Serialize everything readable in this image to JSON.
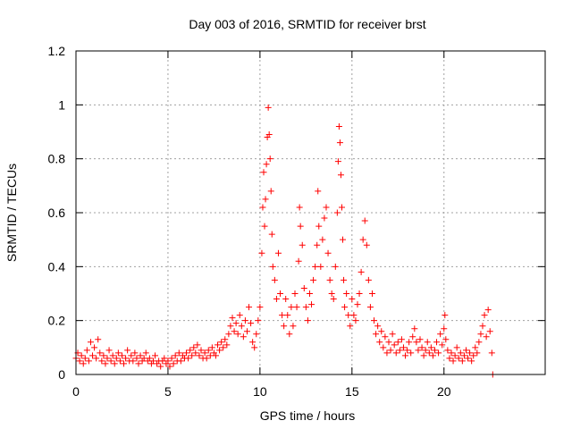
{
  "chart_data": {
    "type": "scatter",
    "title": "Day 003 of 2016, SRMTID for receiver brst",
    "xlabel": "GPS time / hours",
    "ylabel": "SRMTID / TECUs",
    "xlim": [
      0,
      25.5
    ],
    "ylim": [
      0,
      1.2
    ],
    "xticks": [
      0,
      5,
      10,
      15,
      20
    ],
    "xtick_labels": [
      "0",
      "5",
      "10",
      "15",
      "20"
    ],
    "yticks": [
      0,
      0.2,
      0.4,
      0.6,
      0.8,
      1.0,
      1.2
    ],
    "ytick_labels": [
      "0",
      "0.2",
      "0.4",
      "0.6",
      "0.8",
      "1",
      "1.2"
    ],
    "grid": true,
    "marker": "+",
    "color": "#ff0000",
    "series": [
      {
        "name": "SRMTID",
        "points": [
          [
            0.0,
            0.06
          ],
          [
            0.1,
            0.08
          ],
          [
            0.2,
            0.05
          ],
          [
            0.3,
            0.07
          ],
          [
            0.4,
            0.04
          ],
          [
            0.5,
            0.06
          ],
          [
            0.6,
            0.09
          ],
          [
            0.7,
            0.05
          ],
          [
            0.8,
            0.12
          ],
          [
            0.9,
            0.07
          ],
          [
            1.0,
            0.1
          ],
          [
            1.1,
            0.06
          ],
          [
            1.2,
            0.13
          ],
          [
            1.3,
            0.08
          ],
          [
            1.4,
            0.05
          ],
          [
            1.5,
            0.07
          ],
          [
            1.6,
            0.04
          ],
          [
            1.7,
            0.06
          ],
          [
            1.8,
            0.09
          ],
          [
            1.9,
            0.05
          ],
          [
            2.0,
            0.07
          ],
          [
            2.1,
            0.04
          ],
          [
            2.2,
            0.06
          ],
          [
            2.3,
            0.08
          ],
          [
            2.4,
            0.05
          ],
          [
            2.5,
            0.07
          ],
          [
            2.6,
            0.04
          ],
          [
            2.7,
            0.06
          ],
          [
            2.8,
            0.09
          ],
          [
            2.9,
            0.05
          ],
          [
            3.0,
            0.07
          ],
          [
            3.1,
            0.05
          ],
          [
            3.2,
            0.08
          ],
          [
            3.3,
            0.06
          ],
          [
            3.4,
            0.04
          ],
          [
            3.5,
            0.07
          ],
          [
            3.6,
            0.05
          ],
          [
            3.7,
            0.06
          ],
          [
            3.8,
            0.08
          ],
          [
            3.9,
            0.05
          ],
          [
            4.0,
            0.06
          ],
          [
            4.1,
            0.04
          ],
          [
            4.2,
            0.05
          ],
          [
            4.3,
            0.07
          ],
          [
            4.4,
            0.04
          ],
          [
            4.5,
            0.05
          ],
          [
            4.6,
            0.03
          ],
          [
            4.7,
            0.05
          ],
          [
            4.8,
            0.06
          ],
          [
            4.9,
            0.04
          ],
          [
            5.0,
            0.05
          ],
          [
            5.1,
            0.03
          ],
          [
            5.2,
            0.06
          ],
          [
            5.3,
            0.04
          ],
          [
            5.4,
            0.07
          ],
          [
            5.5,
            0.05
          ],
          [
            5.6,
            0.08
          ],
          [
            5.7,
            0.05
          ],
          [
            5.8,
            0.07
          ],
          [
            5.9,
            0.06
          ],
          [
            6.0,
            0.08
          ],
          [
            6.1,
            0.06
          ],
          [
            6.2,
            0.09
          ],
          [
            6.3,
            0.07
          ],
          [
            6.4,
            0.1
          ],
          [
            6.5,
            0.08
          ],
          [
            6.6,
            0.11
          ],
          [
            6.7,
            0.07
          ],
          [
            6.8,
            0.09
          ],
          [
            6.9,
            0.06
          ],
          [
            7.0,
            0.08
          ],
          [
            7.1,
            0.06
          ],
          [
            7.2,
            0.09
          ],
          [
            7.3,
            0.07
          ],
          [
            7.4,
            0.1
          ],
          [
            7.5,
            0.08
          ],
          [
            7.6,
            0.07
          ],
          [
            7.7,
            0.11
          ],
          [
            7.8,
            0.09
          ],
          [
            7.9,
            0.12
          ],
          [
            8.0,
            0.1
          ],
          [
            8.1,
            0.13
          ],
          [
            8.2,
            0.11
          ],
          [
            8.3,
            0.15
          ],
          [
            8.4,
            0.18
          ],
          [
            8.5,
            0.21
          ],
          [
            8.6,
            0.16
          ],
          [
            8.7,
            0.19
          ],
          [
            8.8,
            0.15
          ],
          [
            8.9,
            0.22
          ],
          [
            9.0,
            0.18
          ],
          [
            9.1,
            0.14
          ],
          [
            9.2,
            0.2
          ],
          [
            9.3,
            0.16
          ],
          [
            9.4,
            0.25
          ],
          [
            9.5,
            0.19
          ],
          [
            9.6,
            0.12
          ],
          [
            9.7,
            0.1
          ],
          [
            9.8,
            0.15
          ],
          [
            9.9,
            0.2
          ],
          [
            10.0,
            0.25
          ],
          [
            10.1,
            0.45
          ],
          [
            10.15,
            0.62
          ],
          [
            10.2,
            0.75
          ],
          [
            10.25,
            0.55
          ],
          [
            10.3,
            0.65
          ],
          [
            10.35,
            0.78
          ],
          [
            10.4,
            0.88
          ],
          [
            10.45,
            0.99
          ],
          [
            10.5,
            0.89
          ],
          [
            10.55,
            0.8
          ],
          [
            10.6,
            0.68
          ],
          [
            10.65,
            0.52
          ],
          [
            10.7,
            0.4
          ],
          [
            10.8,
            0.35
          ],
          [
            10.9,
            0.28
          ],
          [
            11.0,
            0.45
          ],
          [
            11.1,
            0.3
          ],
          [
            11.2,
            0.22
          ],
          [
            11.3,
            0.18
          ],
          [
            11.4,
            0.28
          ],
          [
            11.5,
            0.22
          ],
          [
            11.6,
            0.15
          ],
          [
            11.7,
            0.25
          ],
          [
            11.8,
            0.18
          ],
          [
            11.9,
            0.3
          ],
          [
            12.0,
            0.25
          ],
          [
            12.1,
            0.42
          ],
          [
            12.15,
            0.62
          ],
          [
            12.2,
            0.55
          ],
          [
            12.3,
            0.48
          ],
          [
            12.4,
            0.32
          ],
          [
            12.5,
            0.25
          ],
          [
            12.6,
            0.2
          ],
          [
            12.7,
            0.3
          ],
          [
            12.8,
            0.26
          ],
          [
            12.9,
            0.35
          ],
          [
            13.0,
            0.4
          ],
          [
            13.1,
            0.48
          ],
          [
            13.15,
            0.68
          ],
          [
            13.2,
            0.55
          ],
          [
            13.3,
            0.4
          ],
          [
            13.4,
            0.5
          ],
          [
            13.5,
            0.58
          ],
          [
            13.6,
            0.62
          ],
          [
            13.7,
            0.45
          ],
          [
            13.8,
            0.35
          ],
          [
            13.9,
            0.3
          ],
          [
            14.0,
            0.28
          ],
          [
            14.1,
            0.4
          ],
          [
            14.2,
            0.6
          ],
          [
            14.25,
            0.79
          ],
          [
            14.3,
            0.92
          ],
          [
            14.35,
            0.86
          ],
          [
            14.4,
            0.74
          ],
          [
            14.45,
            0.62
          ],
          [
            14.5,
            0.5
          ],
          [
            14.55,
            0.35
          ],
          [
            14.6,
            0.25
          ],
          [
            14.7,
            0.3
          ],
          [
            14.8,
            0.22
          ],
          [
            14.9,
            0.18
          ],
          [
            15.0,
            0.28
          ],
          [
            15.1,
            0.22
          ],
          [
            15.2,
            0.2
          ],
          [
            15.3,
            0.26
          ],
          [
            15.4,
            0.3
          ],
          [
            15.5,
            0.38
          ],
          [
            15.6,
            0.5
          ],
          [
            15.7,
            0.57
          ],
          [
            15.8,
            0.48
          ],
          [
            15.9,
            0.35
          ],
          [
            16.0,
            0.25
          ],
          [
            16.1,
            0.3
          ],
          [
            16.2,
            0.2
          ],
          [
            16.3,
            0.15
          ],
          [
            16.4,
            0.18
          ],
          [
            16.5,
            0.12
          ],
          [
            16.6,
            0.16
          ],
          [
            16.7,
            0.1
          ],
          [
            16.8,
            0.14
          ],
          [
            16.9,
            0.08
          ],
          [
            17.0,
            0.12
          ],
          [
            17.1,
            0.09
          ],
          [
            17.2,
            0.15
          ],
          [
            17.3,
            0.11
          ],
          [
            17.4,
            0.08
          ],
          [
            17.5,
            0.12
          ],
          [
            17.6,
            0.09
          ],
          [
            17.7,
            0.13
          ],
          [
            17.8,
            0.1
          ],
          [
            17.9,
            0.07
          ],
          [
            18.0,
            0.09
          ],
          [
            18.1,
            0.12
          ],
          [
            18.2,
            0.08
          ],
          [
            18.3,
            0.14
          ],
          [
            18.4,
            0.17
          ],
          [
            18.5,
            0.12
          ],
          [
            18.6,
            0.09
          ],
          [
            18.7,
            0.13
          ],
          [
            18.8,
            0.1
          ],
          [
            18.9,
            0.07
          ],
          [
            19.0,
            0.09
          ],
          [
            19.1,
            0.12
          ],
          [
            19.2,
            0.08
          ],
          [
            19.3,
            0.1
          ],
          [
            19.4,
            0.07
          ],
          [
            19.5,
            0.09
          ],
          [
            19.6,
            0.12
          ],
          [
            19.7,
            0.08
          ],
          [
            19.8,
            0.15
          ],
          [
            19.9,
            0.11
          ],
          [
            20.0,
            0.17
          ],
          [
            20.05,
            0.22
          ],
          [
            20.1,
            0.13
          ],
          [
            20.2,
            0.09
          ],
          [
            20.3,
            0.06
          ],
          [
            20.4,
            0.08
          ],
          [
            20.5,
            0.05
          ],
          [
            20.6,
            0.07
          ],
          [
            20.7,
            0.1
          ],
          [
            20.8,
            0.06
          ],
          [
            20.9,
            0.08
          ],
          [
            21.0,
            0.05
          ],
          [
            21.1,
            0.07
          ],
          [
            21.2,
            0.09
          ],
          [
            21.3,
            0.06
          ],
          [
            21.4,
            0.08
          ],
          [
            21.5,
            0.05
          ],
          [
            21.6,
            0.07
          ],
          [
            21.7,
            0.1
          ],
          [
            21.8,
            0.08
          ],
          [
            21.9,
            0.12
          ],
          [
            22.0,
            0.15
          ],
          [
            22.1,
            0.18
          ],
          [
            22.2,
            0.22
          ],
          [
            22.3,
            0.14
          ],
          [
            22.4,
            0.24
          ],
          [
            22.5,
            0.16
          ],
          [
            22.6,
            0.08
          ],
          [
            22.65,
            0.0
          ]
        ]
      }
    ]
  }
}
